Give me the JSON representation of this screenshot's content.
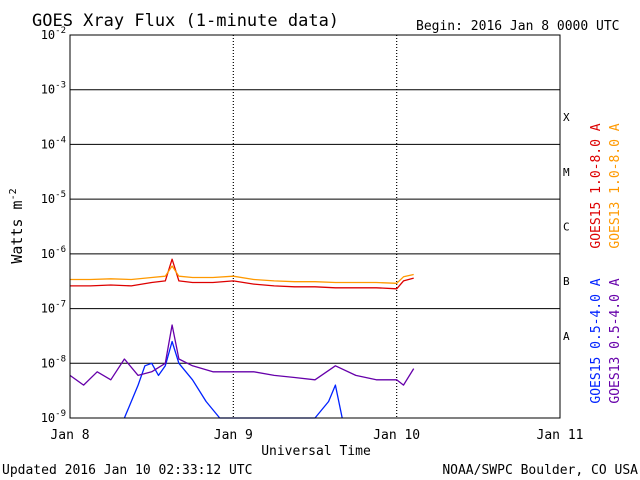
{
  "chart_data": {
    "type": "line",
    "title": "GOES Xray Flux (1-minute data)",
    "begin_label": "Begin:  2016 Jan 8 0000 UTC",
    "ylabel": "Watts m",
    "ylabel_sup": "-2",
    "xlabel": "Universal Time",
    "x_ticks": [
      "Jan 8",
      "Jan 9",
      "Jan 10",
      "Jan 11"
    ],
    "xlim": [
      "2016-01-08T00:00",
      "2016-01-11T00:00"
    ],
    "ylim": [
      1e-09,
      0.01
    ],
    "y_scale": "log",
    "y_ticks": [
      {
        "base": "10",
        "exp": "-9",
        "value": 1e-09
      },
      {
        "base": "10",
        "exp": "-8",
        "value": 1e-08
      },
      {
        "base": "10",
        "exp": "-7",
        "value": 1e-07
      },
      {
        "base": "10",
        "exp": "-6",
        "value": 1e-06
      },
      {
        "base": "10",
        "exp": "-5",
        "value": 1e-05
      },
      {
        "base": "10",
        "exp": "-4",
        "value": 0.0001
      },
      {
        "base": "10",
        "exp": "-3",
        "value": 0.001
      },
      {
        "base": "10",
        "exp": "-2",
        "value": 0.01
      }
    ],
    "flare_classes": [
      {
        "label": "A",
        "value": 3.16e-08
      },
      {
        "label": "B",
        "value": 3.16e-07
      },
      {
        "label": "C",
        "value": 3.16e-06
      },
      {
        "label": "M",
        "value": 3.16e-05
      },
      {
        "label": "X",
        "value": 0.000316
      }
    ],
    "grid": true,
    "series": [
      {
        "name": "GOES15 1.0-8.0 A",
        "color": "#dd0000",
        "x": [
          "2016-01-08T00:00",
          "2016-01-08T03:00",
          "2016-01-08T06:00",
          "2016-01-08T09:00",
          "2016-01-08T12:00",
          "2016-01-08T14:00",
          "2016-01-08T15:00",
          "2016-01-08T16:00",
          "2016-01-08T18:00",
          "2016-01-08T21:00",
          "2016-01-09T00:00",
          "2016-01-09T03:00",
          "2016-01-09T06:00",
          "2016-01-09T09:00",
          "2016-01-09T12:00",
          "2016-01-09T15:00",
          "2016-01-09T18:00",
          "2016-01-09T21:00",
          "2016-01-10T00:00",
          "2016-01-10T01:00",
          "2016-01-10T02:30"
        ],
        "values": [
          2.6e-07,
          2.6e-07,
          2.7e-07,
          2.6e-07,
          3e-07,
          3.2e-07,
          8e-07,
          3.2e-07,
          3e-07,
          3e-07,
          3.2e-07,
          2.8e-07,
          2.6e-07,
          2.5e-07,
          2.5e-07,
          2.4e-07,
          2.4e-07,
          2.4e-07,
          2.3e-07,
          3.2e-07,
          3.6e-07
        ]
      },
      {
        "name": "GOES13 1.0-8.0 A",
        "color": "#ff9900",
        "x": [
          "2016-01-08T00:00",
          "2016-01-08T03:00",
          "2016-01-08T06:00",
          "2016-01-08T09:00",
          "2016-01-08T12:00",
          "2016-01-08T14:00",
          "2016-01-08T15:00",
          "2016-01-08T16:00",
          "2016-01-08T18:00",
          "2016-01-08T21:00",
          "2016-01-09T00:00",
          "2016-01-09T03:00",
          "2016-01-09T06:00",
          "2016-01-09T09:00",
          "2016-01-09T12:00",
          "2016-01-09T15:00",
          "2016-01-09T18:00",
          "2016-01-09T21:00",
          "2016-01-10T00:00",
          "2016-01-10T01:00",
          "2016-01-10T02:30"
        ],
        "values": [
          3.4e-07,
          3.4e-07,
          3.5e-07,
          3.4e-07,
          3.7e-07,
          3.9e-07,
          6e-07,
          3.9e-07,
          3.7e-07,
          3.7e-07,
          3.9e-07,
          3.4e-07,
          3.2e-07,
          3.1e-07,
          3.1e-07,
          3e-07,
          3e-07,
          3e-07,
          2.9e-07,
          3.8e-07,
          4.2e-07
        ]
      },
      {
        "name": "GOES15 0.5-4.0 A",
        "color": "#0022ff",
        "x": [
          "2016-01-08T08:00",
          "2016-01-08T10:00",
          "2016-01-08T11:00",
          "2016-01-08T12:00",
          "2016-01-08T13:00",
          "2016-01-08T14:00",
          "2016-01-08T15:00",
          "2016-01-08T16:00",
          "2016-01-08T18:00",
          "2016-01-08T20:00",
          "2016-01-08T22:00",
          "2016-01-09T12:00",
          "2016-01-09T14:00",
          "2016-01-09T15:00",
          "2016-01-09T16:00"
        ],
        "values": [
          1e-09,
          4e-09,
          9e-09,
          1e-08,
          6e-09,
          9e-09,
          2.5e-08,
          1e-08,
          5e-09,
          2e-09,
          1e-09,
          1e-09,
          2e-09,
          4e-09,
          1e-09
        ]
      },
      {
        "name": "GOES13 0.5-4.0 A",
        "color": "#6600aa",
        "x": [
          "2016-01-08T00:00",
          "2016-01-08T02:00",
          "2016-01-08T04:00",
          "2016-01-08T06:00",
          "2016-01-08T08:00",
          "2016-01-08T10:00",
          "2016-01-08T12:00",
          "2016-01-08T14:00",
          "2016-01-08T15:00",
          "2016-01-08T16:00",
          "2016-01-08T18:00",
          "2016-01-08T21:00",
          "2016-01-09T00:00",
          "2016-01-09T03:00",
          "2016-01-09T06:00",
          "2016-01-09T09:00",
          "2016-01-09T12:00",
          "2016-01-09T15:00",
          "2016-01-09T18:00",
          "2016-01-09T21:00",
          "2016-01-10T00:00",
          "2016-01-10T01:00",
          "2016-01-10T02:30"
        ],
        "values": [
          6e-09,
          4e-09,
          7e-09,
          5e-09,
          1.2e-08,
          6e-09,
          7e-09,
          1e-08,
          5e-08,
          1.2e-08,
          9e-09,
          7e-09,
          7e-09,
          7e-09,
          6e-09,
          5.5e-09,
          5e-09,
          9e-09,
          6e-09,
          5e-09,
          5e-09,
          4e-09,
          8e-09
        ]
      }
    ]
  },
  "footer": {
    "updated": "Updated 2016 Jan 10 02:33:12 UTC",
    "credit": "NOAA/SWPC Boulder, CO USA"
  }
}
